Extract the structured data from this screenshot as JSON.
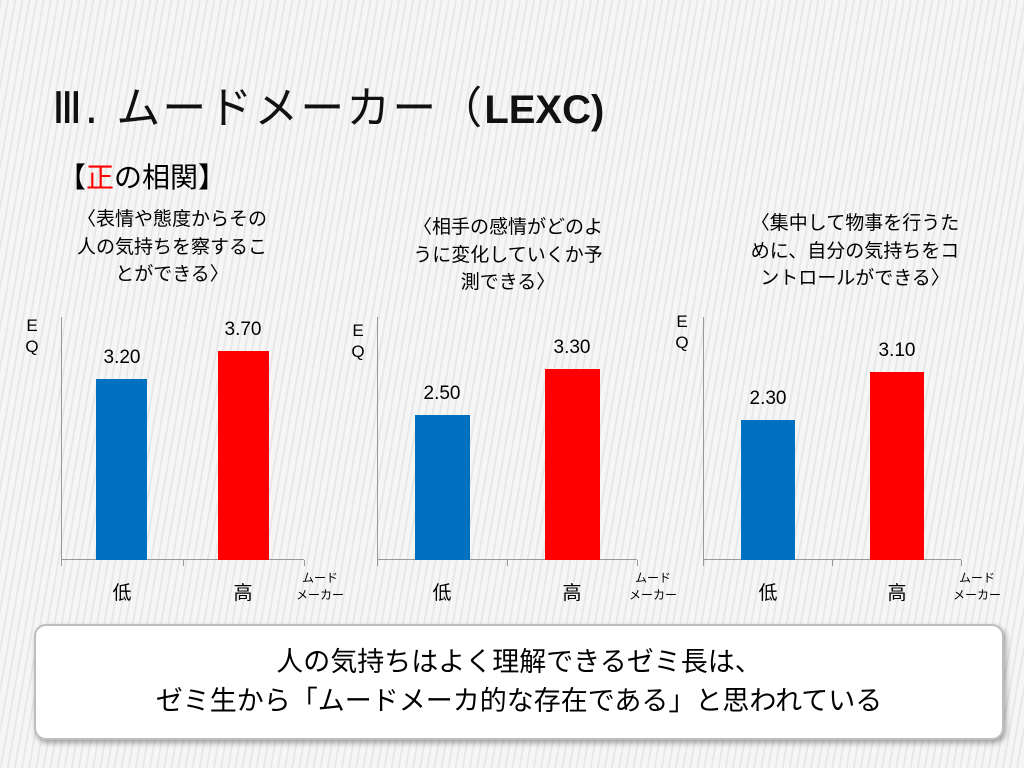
{
  "slide": {
    "title_prefix": "Ⅲ. ムードメーカー（",
    "title_latin": "LEXC)",
    "subheading": {
      "open": "【",
      "highlight": "正",
      "rest": "の相関】"
    },
    "callout": {
      "line1": "人の気持ちはよく理解できるゼミ長は、",
      "line2": "ゼミ生から「ムードメーカ的な存在である」と思われている"
    }
  },
  "chart_data": [
    {
      "type": "bar",
      "title_lines": [
        "〈表情や態度からその",
        "人の気持ちを察するこ",
        "とができる〉"
      ],
      "ylabel": [
        "E",
        "Q"
      ],
      "xlabel": [
        "ムード",
        "メーカー"
      ],
      "categories": [
        "低",
        "高"
      ],
      "values": [
        3.2,
        3.7
      ],
      "value_labels": [
        "3.20",
        "3.70"
      ],
      "colors": [
        "#0070c0",
        "#ff0000"
      ],
      "ylim": [
        0,
        4.3
      ]
    },
    {
      "type": "bar",
      "title_lines": [
        "〈相手の感情がどのよ",
        "うに変化していくか予",
        "測できる〉"
      ],
      "ylabel": [
        "E",
        "Q"
      ],
      "xlabel": [
        "ムード",
        "メーカー"
      ],
      "categories": [
        "低",
        "高"
      ],
      "values": [
        2.5,
        3.3
      ],
      "value_labels": [
        "2.50",
        "3.30"
      ],
      "colors": [
        "#0070c0",
        "#ff0000"
      ],
      "ylim": [
        0,
        4.2
      ]
    },
    {
      "type": "bar",
      "title_lines": [
        "〈集中して物事を行うた",
        "めに、自分の気持ちをコ",
        "ントロールができる〉"
      ],
      "ylabel": [
        "E",
        "Q"
      ],
      "xlabel": [
        "ムード",
        "メーカー"
      ],
      "categories": [
        "低",
        "高"
      ],
      "values": [
        2.3,
        3.1
      ],
      "value_labels": [
        "2.30",
        "3.10"
      ],
      "colors": [
        "#0070c0",
        "#ff0000"
      ],
      "ylim": [
        0,
        4.0
      ]
    }
  ]
}
